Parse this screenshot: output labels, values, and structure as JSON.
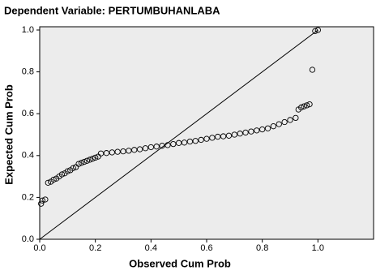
{
  "chart_data": {
    "type": "scatter",
    "title": "Dependent Variable: PERTUMBUHANLABA",
    "x_label": "Observed Cum Prob",
    "y_label": "Expected Cum Prob",
    "xlim": [
      0,
      1.2
    ],
    "ylim": [
      0,
      1
    ],
    "xticks": [
      {
        "value": 0,
        "label": "0.0"
      },
      {
        "value": 0.2,
        "label": "0.2"
      },
      {
        "value": 0.4,
        "label": "0.4"
      },
      {
        "value": 0.6,
        "label": "0.6"
      },
      {
        "value": 0.8,
        "label": "0.8"
      },
      {
        "value": 1,
        "label": "1.0"
      }
    ],
    "yticks": [
      {
        "value": 0,
        "label": "0.0"
      },
      {
        "value": 0.2,
        "label": "0.2"
      },
      {
        "value": 0.4,
        "label": "0.4"
      },
      {
        "value": 0.6,
        "label": "0.6"
      },
      {
        "value": 0.8,
        "label": "0.8"
      },
      {
        "value": 1,
        "label": "1.0"
      }
    ],
    "color": "#000000",
    "x": [
      0.005,
      0.01,
      0.02,
      0.03,
      0.04,
      0.05,
      0.06,
      0.07,
      0.08,
      0.09,
      0.1,
      0.11,
      0.12,
      0.13,
      0.14,
      0.15,
      0.16,
      0.17,
      0.18,
      0.19,
      0.2,
      0.21,
      0.22,
      0.24,
      0.26,
      0.28,
      0.3,
      0.32,
      0.34,
      0.36,
      0.38,
      0.4,
      0.42,
      0.44,
      0.46,
      0.48,
      0.5,
      0.52,
      0.54,
      0.56,
      0.58,
      0.6,
      0.62,
      0.64,
      0.66,
      0.68,
      0.7,
      0.72,
      0.74,
      0.76,
      0.78,
      0.8,
      0.82,
      0.84,
      0.86,
      0.88,
      0.9,
      0.92,
      0.93,
      0.94,
      0.95,
      0.96,
      0.97,
      0.98,
      0.99,
      1.0
    ],
    "values": [
      0.17,
      0.185,
      0.19,
      0.27,
      0.275,
      0.285,
      0.29,
      0.3,
      0.31,
      0.315,
      0.325,
      0.33,
      0.34,
      0.345,
      0.36,
      0.365,
      0.37,
      0.375,
      0.38,
      0.385,
      0.39,
      0.395,
      0.41,
      0.412,
      0.415,
      0.418,
      0.42,
      0.423,
      0.427,
      0.43,
      0.435,
      0.44,
      0.443,
      0.447,
      0.45,
      0.455,
      0.46,
      0.462,
      0.467,
      0.47,
      0.475,
      0.48,
      0.485,
      0.49,
      0.492,
      0.495,
      0.5,
      0.505,
      0.51,
      0.515,
      0.52,
      0.525,
      0.53,
      0.54,
      0.55,
      0.56,
      0.57,
      0.58,
      0.62,
      0.63,
      0.635,
      0.64,
      0.645,
      0.81,
      0.995,
      1.0
    ]
  }
}
